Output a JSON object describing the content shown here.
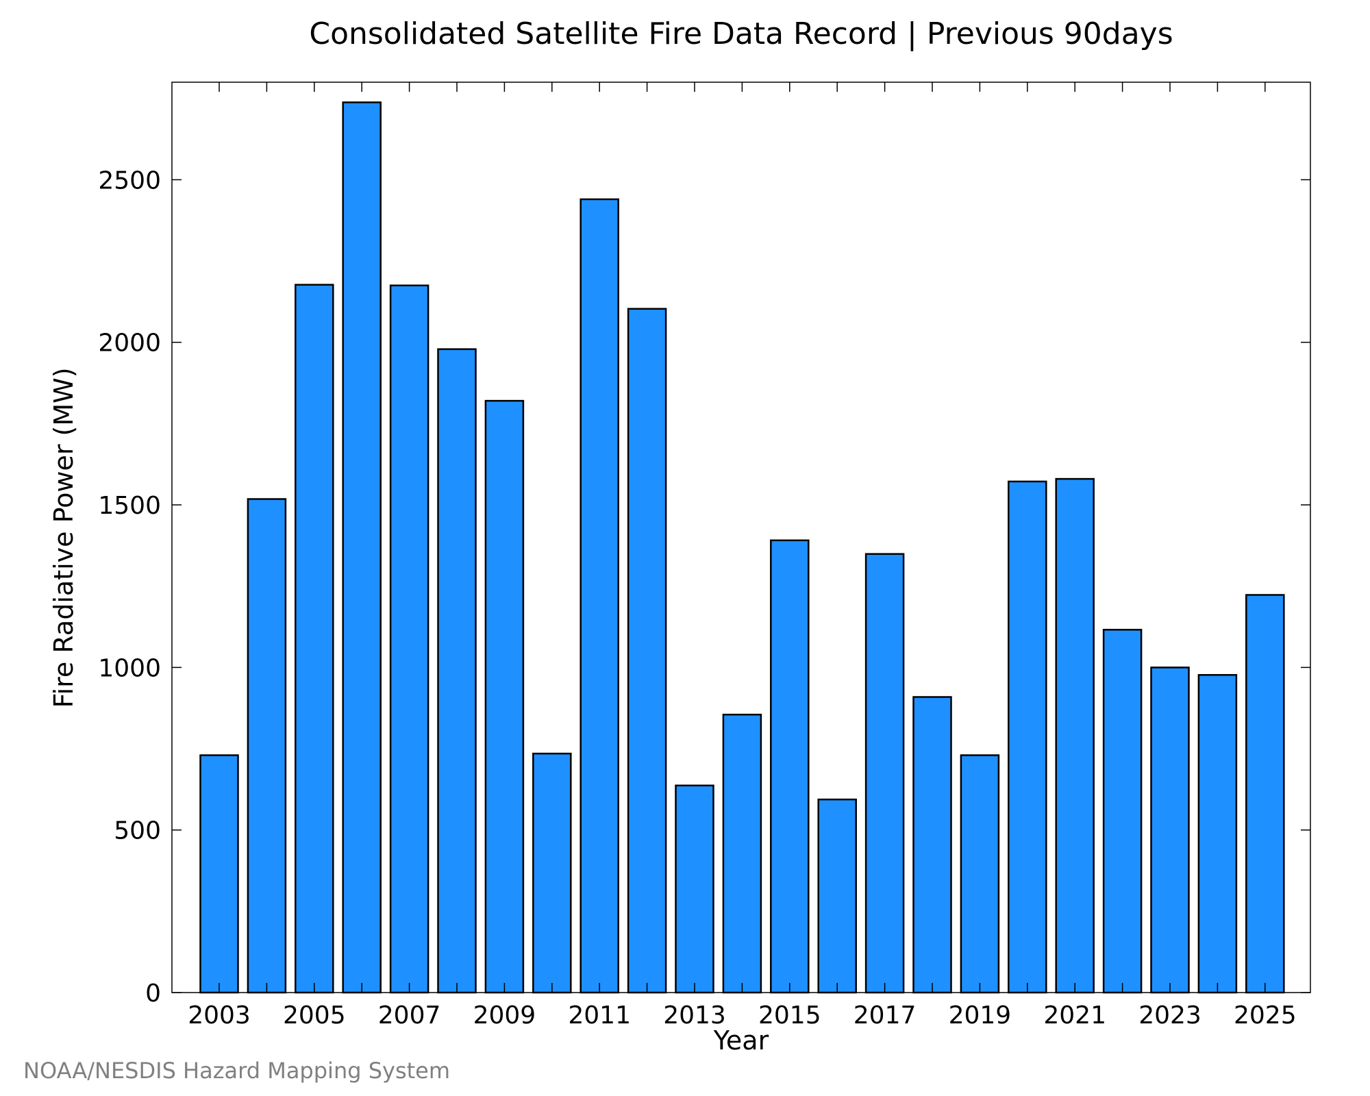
{
  "chart_data": {
    "type": "bar",
    "title": "Consolidated Satellite Fire Data Record | Previous 90days",
    "xlabel": "Year",
    "ylabel": "Fire Radiative Power (MW)",
    "categories": [
      "2003",
      "2004",
      "2005",
      "2006",
      "2007",
      "2008",
      "2009",
      "2010",
      "2011",
      "2012",
      "2013",
      "2014",
      "2015",
      "2016",
      "2017",
      "2018",
      "2019",
      "2020",
      "2021",
      "2022",
      "2023",
      "2024",
      "2025"
    ],
    "values": [
      730,
      1518,
      2177,
      2738,
      2175,
      1979,
      1820,
      735,
      2440,
      2103,
      637,
      855,
      1391,
      594,
      1349,
      909,
      730,
      1572,
      1580,
      1116,
      1000,
      977,
      1223
    ],
    "x_tick_labels": [
      "2003",
      "2005",
      "2007",
      "2009",
      "2011",
      "2013",
      "2015",
      "2017",
      "2019",
      "2021",
      "2023",
      "2025"
    ],
    "y_ticks": [
      0,
      500,
      1000,
      1500,
      2000,
      2500
    ],
    "ylim": [
      0,
      2800
    ],
    "grid": false,
    "legend": "none",
    "bar_color": "#1e90ff",
    "bar_edge_color": "#000000"
  },
  "credit": "NOAA/NESDIS Hazard Mapping System"
}
